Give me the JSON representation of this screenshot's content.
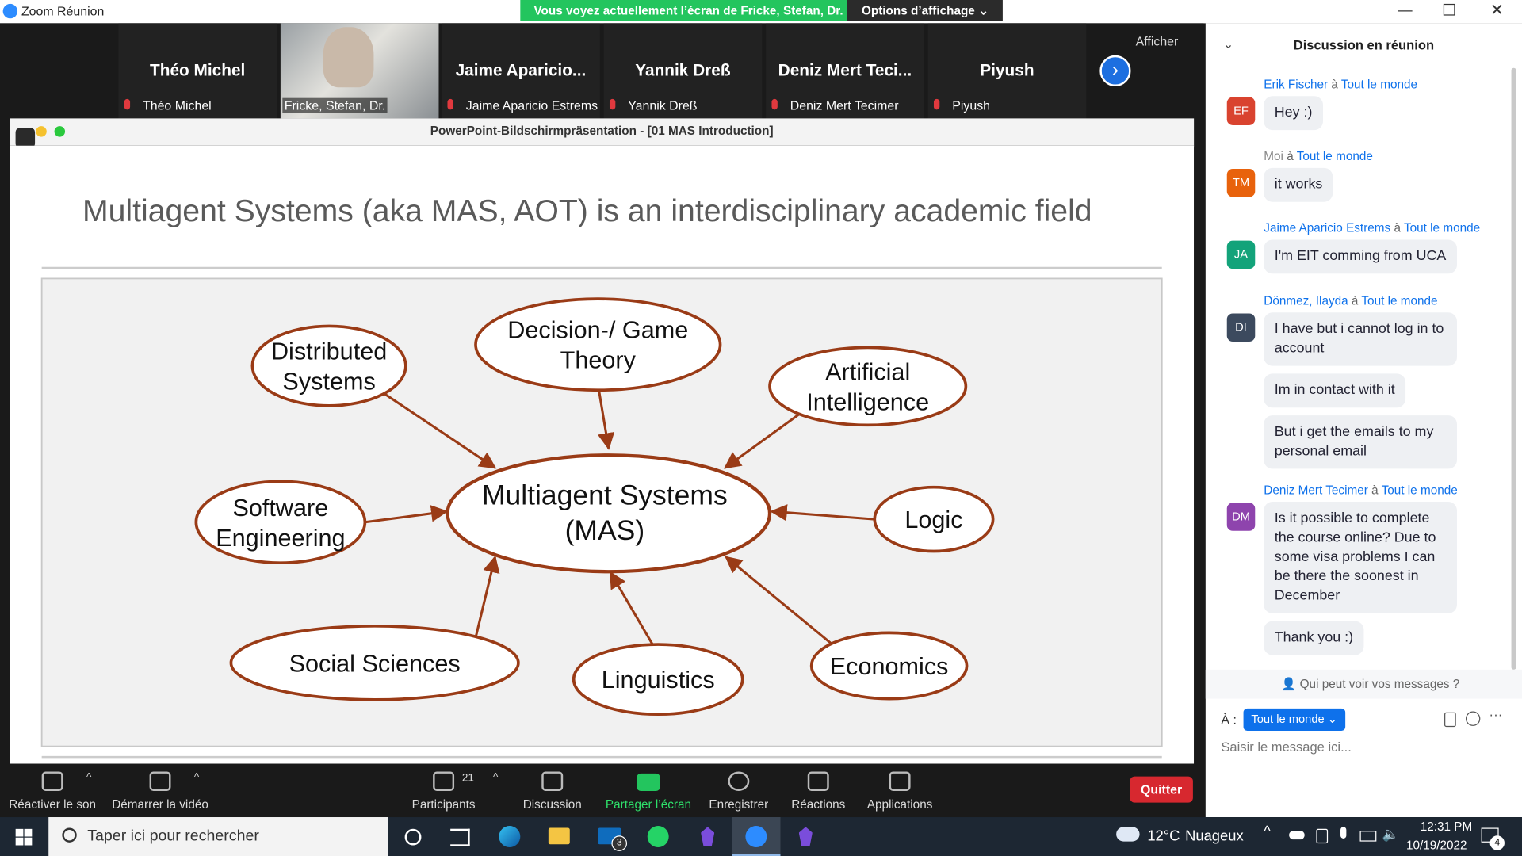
{
  "window": {
    "title": "Zoom Réunion"
  },
  "banner": {
    "text": "Vous voyez actuellement l’écran de Fricke, Stefan, Dr.",
    "options": "Options d’affichage"
  },
  "participants": [
    {
      "name": "Théo Michel",
      "label": "Théo Michel"
    },
    {
      "label": "Fricke, Stefan, Dr."
    },
    {
      "name": "Jaime  Aparicio...",
      "label": "Jaime Aparicio Estrems"
    },
    {
      "name": "Yannik Dreß",
      "label": "Yannik Dreß"
    },
    {
      "name": "Deniz  Mert  Teci...",
      "label": "Deniz Mert Tecimer"
    },
    {
      "name": "Piyush",
      "label": "Piyush"
    }
  ],
  "view_button": "Afficher",
  "share": {
    "window_title": "PowerPoint-Bildschirmpräsentation - [01 MAS Introduction]",
    "slide": {
      "title": "Multiagent Systems (aka MAS, AOT) is an interdisciplinary academic field",
      "center": [
        "Multiagent Systems",
        "(MAS)"
      ],
      "nodes": [
        {
          "lines": [
            "Distributed",
            "Systems"
          ]
        },
        {
          "lines": [
            "Decision-/ Game",
            "Theory"
          ]
        },
        {
          "lines": [
            "Artificial",
            "Intelligence"
          ]
        },
        {
          "lines": [
            "Software",
            "Engineering"
          ]
        },
        {
          "lines": [
            "Logic"
          ]
        },
        {
          "lines": [
            "Social Sciences"
          ]
        },
        {
          "lines": [
            "Linguistics"
          ]
        },
        {
          "lines": [
            "Economics"
          ]
        }
      ]
    }
  },
  "toolbar": {
    "items": [
      {
        "label": "Réactiver le son"
      },
      {
        "label": "Démarrer la vidéo"
      },
      {
        "label": "Participants",
        "badge": "21"
      },
      {
        "label": "Discussion"
      },
      {
        "label": "Partager l’écran"
      },
      {
        "label": "Enregistrer"
      },
      {
        "label": "Réactions"
      },
      {
        "label": "Applications"
      }
    ],
    "quit": "Quitter"
  },
  "chat": {
    "title": "Discussion en réunion",
    "messages": [
      {
        "sender": "Erik Fischer",
        "to": "à",
        "recipient": "Tout le monde",
        "initials": "EF",
        "bubbles": [
          "Hey :)"
        ]
      },
      {
        "sender": "Moi",
        "to": "à",
        "recipient": "Tout le monde",
        "initials": "TM",
        "bubbles": [
          "it works"
        ]
      },
      {
        "sender": "Jaime Aparicio Estrems",
        "to": "à",
        "recipient": "Tout le monde",
        "initials": "JA",
        "bubbles": [
          "I'm EIT comming from UCA"
        ]
      },
      {
        "sender": "Dönmez, Ilayda",
        "to": "à",
        "recipient": "Tout le monde",
        "initials": "DI",
        "bubbles": [
          "I have but i cannot log in to account",
          "Im in contact with it",
          "But i get the emails to my personal email"
        ]
      },
      {
        "sender": "Deniz Mert Tecimer",
        "to": "à",
        "recipient": "Tout le monde",
        "initials": "DM",
        "bubbles": [
          "Is it possible to complete the course online? Due to some visa problems I can be there the soonest in December",
          "Thank you :)"
        ]
      }
    ],
    "privacy": "Qui peut voir vos messages ?",
    "to_label": "À :",
    "to_value": "Tout le monde",
    "placeholder": "Saisir le message ici..."
  },
  "taskbar": {
    "search": "Taper ici pour rechercher",
    "mail_badge": "3",
    "temperature": "12°C",
    "weather": "Nuageux",
    "time": "12:31 PM",
    "date": "10/19/2022",
    "notifications": "4"
  }
}
